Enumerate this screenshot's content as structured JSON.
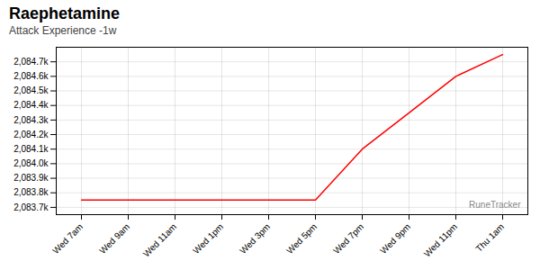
{
  "chart_data": {
    "type": "line",
    "title": "Raephetamine",
    "subtitle": "Attack Experience -1w",
    "categories": [
      "Wed 7am",
      "Wed 9am",
      "Wed 11am",
      "Wed 1pm",
      "Wed 3pm",
      "Wed 5pm",
      "Wed 7pm",
      "Wed 9pm",
      "Wed 11pm",
      "Thu 1am"
    ],
    "values": [
      2083750,
      2083750,
      2083750,
      2083750,
      2083750,
      2083750,
      2084100,
      2084350,
      2084600,
      2084750
    ],
    "color": "#ff0000",
    "ylim": [
      2083650,
      2084800
    ],
    "yticks": [
      {
        "value": 2083700,
        "label": "2,083.7k"
      },
      {
        "value": 2083800,
        "label": "2,083.8k"
      },
      {
        "value": 2083900,
        "label": "2,083.9k"
      },
      {
        "value": 2084000,
        "label": "2,084.0k"
      },
      {
        "value": 2084100,
        "label": "2,084.1k"
      },
      {
        "value": 2084200,
        "label": "2,084.2k"
      },
      {
        "value": 2084300,
        "label": "2,084.3k"
      },
      {
        "value": 2084400,
        "label": "2,084.4k"
      },
      {
        "value": 2084500,
        "label": "2,084.5k"
      },
      {
        "value": 2084600,
        "label": "2,084.6k"
      },
      {
        "value": 2084700,
        "label": "2,084.7k"
      }
    ],
    "grid": true,
    "annotations": [
      "RuneTracker"
    ]
  }
}
